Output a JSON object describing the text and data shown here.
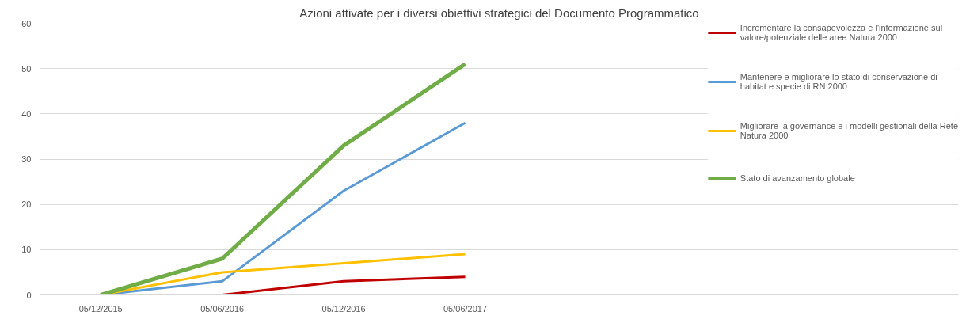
{
  "chart_data": {
    "type": "line",
    "title": "Azioni attivate per i diversi obiettivi strategici del Documento Programmatico",
    "categories": [
      "05/12/2015",
      "05/06/2016",
      "05/12/2016",
      "05/06/2017"
    ],
    "series": [
      {
        "name": "Incrementare la consapevolezza e l'informazione sul valore/potenziale delle aree Natura 2000",
        "color": "#c00000",
        "values": [
          0,
          0,
          3,
          4
        ]
      },
      {
        "name": "Mantenere e migliorare lo stato di conservazione di habitat e specie di RN 2000",
        "color": "#5b9bd5",
        "values": [
          0,
          3,
          23,
          38
        ]
      },
      {
        "name": "Migliorare la governance e i modelli gestionali della Rete Natura 2000",
        "color": "#ffc000",
        "values": [
          0,
          5,
          7,
          9
        ]
      },
      {
        "name": "Stato di avanzamento globale",
        "color": "#70ad47",
        "values": [
          0,
          8,
          33,
          51
        ]
      }
    ],
    "ylim": [
      0,
      60
    ],
    "yticks": [
      0,
      10,
      20,
      30,
      40,
      50,
      60
    ],
    "grid": "y",
    "legend": "right",
    "marker": "none",
    "line_style": "solid"
  }
}
